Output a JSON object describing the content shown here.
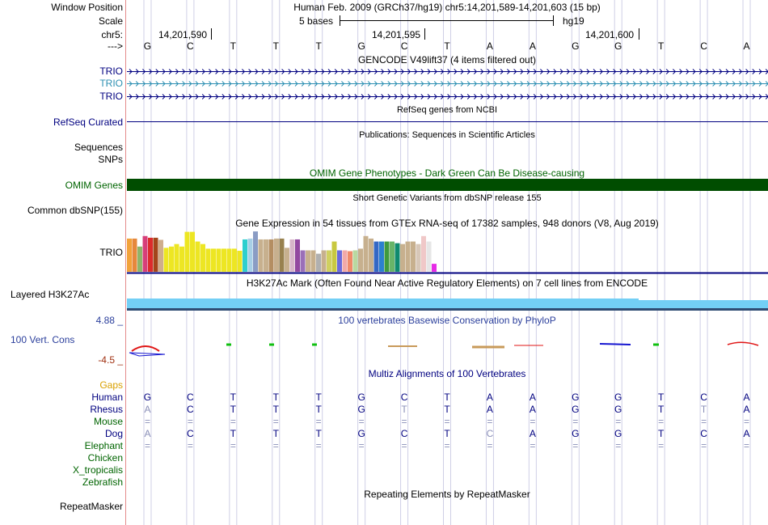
{
  "colors": {
    "label_navy": "#000080",
    "label_teal": "#2C8FB2",
    "label_green": "#006400",
    "label_gaps": "#D9A000",
    "ruler_line": "#000000",
    "grid_line": "#CFCFE6",
    "red_border": "#E48B8B",
    "omim_green": "#004D00",
    "h3k27ac_blue": "#73CFF5",
    "phylop_title": "#2B3F9C",
    "phylop_min": "#A03010",
    "rhesus_gray": "#8A8FB8",
    "repeat_purple": "#6A6AA0"
  },
  "header": {
    "window_label": "Window Position",
    "window_value": "Human Feb. 2009 (GRCh37/hg19)   chr5:14,201,589-14,201,603 (15 bp)",
    "scale_label": "Scale",
    "scale_bases": "5 bases",
    "scale_assembly": "hg19",
    "chrom_label": "chr5:",
    "positions": [
      "14,201,590",
      "14,201,595",
      "14,201,600"
    ],
    "strand_label": "--->",
    "bases": [
      "G",
      "C",
      "T",
      "T",
      "T",
      "G",
      "C",
      "T",
      "A",
      "A",
      "G",
      "G",
      "T",
      "C",
      "A"
    ]
  },
  "tracks": {
    "gencode": {
      "title": "GENCODE V49lift37 (4 items filtered out)",
      "items": [
        {
          "label": "TRIO",
          "color": "navy"
        },
        {
          "label": "TRIO",
          "color": "teal"
        },
        {
          "label": "TRIO",
          "color": "navy"
        }
      ]
    },
    "refseq": {
      "title": "RefSeq genes from NCBI",
      "label": "RefSeq Curated"
    },
    "publications": {
      "title": "Publications: Sequences in Scientific Articles",
      "label": "Sequences"
    },
    "snps_label": "SNPs",
    "omim": {
      "title": "OMIM Gene Phenotypes - Dark Green Can Be Disease-causing",
      "label": "OMIM Genes"
    },
    "dbsnp": {
      "title": "Short Genetic Variants from dbSNP release 155",
      "label": "Common dbSNP(155)"
    },
    "gtex": {
      "title": "Gene Expression in 54 tissues from GTEx RNA-seq of 17382 samples, 948 donors (V8, Aug 2019)",
      "label": "TRIO",
      "values": [
        0.79,
        0.79,
        0.6,
        0.85,
        0.81,
        0.81,
        0.76,
        0.57,
        0.6,
        0.66,
        0.6,
        0.95,
        0.95,
        0.72,
        0.66,
        0.55,
        0.55,
        0.55,
        0.55,
        0.55,
        0.55,
        0.5,
        0.77,
        0.79,
        0.96,
        0.77,
        0.77,
        0.77,
        0.79,
        0.79,
        0.57,
        0.77,
        0.77,
        0.51,
        0.51,
        0.51,
        0.43,
        0.51,
        0.51,
        0.72,
        0.51,
        0.51,
        0.49,
        0.51,
        0.55,
        0.85,
        0.79,
        0.72,
        0.72,
        0.72,
        0.72,
        0.68,
        0.66,
        0.72,
        0.72,
        0.66,
        0.85,
        0.72,
        0.19
      ],
      "colors": [
        "#F2A23A",
        "#E6883C",
        "#8FB46A",
        "#D63F7A",
        "#DC2B2B",
        "#A2451A",
        "#CFAE8C",
        "#EDE623",
        "#EDE623",
        "#EDE623",
        "#EDE623",
        "#EDE623",
        "#EDE623",
        "#EDE623",
        "#EDE623",
        "#EDE623",
        "#EDE623",
        "#EDE623",
        "#EDE623",
        "#EDE623",
        "#EDE623",
        "#EDE623",
        "#2ECFCF",
        "#A7CFE6",
        "#8A9CC4",
        "#C7B08E",
        "#C7B08E",
        "#B48E62",
        "#C7B08E",
        "#98814E",
        "#C7B08E",
        "#D7B5C9",
        "#9248A0",
        "#9A6FB8",
        "#C7B08E",
        "#C7B08E",
        "#B0B0B0",
        "#C7B08E",
        "#D0D060",
        "#C8C840",
        "#6C6CDC",
        "#F2A9A9",
        "#F08A6A",
        "#B9D9A0",
        "#C7B08E",
        "#C7B08E",
        "#C7B08E",
        "#3468C4",
        "#2C80D0",
        "#3F9A3F",
        "#68B468",
        "#0F8A6E",
        "#C7B08E",
        "#C7B08E",
        "#C7B08E",
        "#D7C7B8",
        "#F0C8C8",
        "#E6E6E6",
        "#E62BE6"
      ]
    },
    "h3k27ac": {
      "title": "H3K27Ac Mark (Often Found Near Active Regulatory Elements) on 7 cell lines from ENCODE",
      "label": "Layered H3K27Ac"
    },
    "phylop": {
      "title": "100 vertebrates Basewise Conservation by PhyloP",
      "label": "100 Vert. Cons",
      "max": "4.88 _",
      "min": "-4.5 _"
    },
    "multiz": {
      "title": "Multiz Alignments of 100 Vertebrates",
      "gaps_label": "Gaps",
      "species": [
        {
          "name": "Human",
          "seq": [
            "G",
            "C",
            "T",
            "T",
            "T",
            "G",
            "C",
            "T",
            "A",
            "A",
            "G",
            "G",
            "T",
            "C",
            "A"
          ]
        },
        {
          "name": "Rhesus",
          "seq": [
            "A",
            "C",
            "T",
            "T",
            "T",
            "G",
            "T",
            "T",
            "A",
            "A",
            "G",
            "G",
            "T",
            "T",
            "A"
          ]
        },
        {
          "name": "Mouse",
          "seq": [
            "=",
            "=",
            "=",
            "=",
            "=",
            "=",
            "=",
            "=",
            "=",
            "=",
            "=",
            "=",
            "=",
            "=",
            "="
          ]
        },
        {
          "name": "Dog",
          "seq": [
            "A",
            "C",
            "T",
            "T",
            "T",
            "G",
            "C",
            "T",
            "C",
            "A",
            "G",
            "G",
            "T",
            "C",
            "A"
          ]
        },
        {
          "name": "Elephant",
          "seq": [
            "=",
            "=",
            "=",
            "=",
            "=",
            "=",
            "=",
            "=",
            "=",
            "=",
            "=",
            "=",
            "=",
            "=",
            "="
          ]
        },
        {
          "name": "Chicken",
          "seq": []
        },
        {
          "name": "X_tropicalis",
          "seq": []
        },
        {
          "name": "Zebrafish",
          "seq": []
        }
      ]
    },
    "repeatmasker": {
      "title": "Repeating Elements by RepeatMasker",
      "label": "RepeatMasker"
    }
  }
}
